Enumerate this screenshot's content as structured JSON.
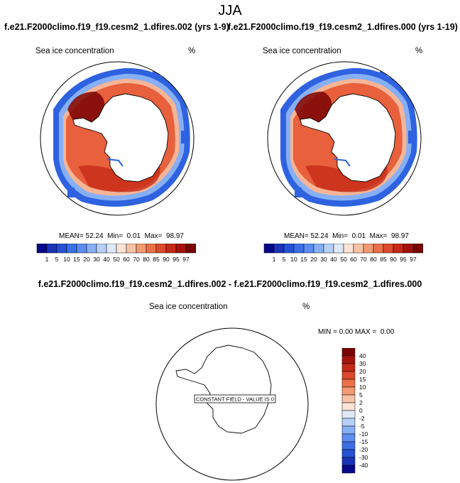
{
  "season": "JJA",
  "panels": [
    {
      "title": "f.e21.F2000climo.f19_f19.cesm2_1.dfires.002 (yrs 1-9)",
      "label_left": "Sea ice concentration",
      "label_right": "%",
      "stats": {
        "mean_label": "MEAN=",
        "mean": "52.24",
        "min_label": "Min=",
        "min": "0.01",
        "max_label": "Max=",
        "max": "98.97"
      }
    },
    {
      "title": "f.e21.F2000climo.f19_f19.cesm2_1.dfires.000 (yrs 1-19)",
      "label_left": "Sea ice concentration",
      "label_right": "%",
      "stats": {
        "mean_label": "MEAN=",
        "mean": "52.24",
        "min_label": "Min=",
        "min": "0.01",
        "max_label": "Max=",
        "max": "98.97"
      }
    }
  ],
  "colorbar": {
    "labels": [
      "1",
      "5",
      "10",
      "15",
      "20",
      "30",
      "40",
      "50",
      "60",
      "70",
      "80",
      "85",
      "90",
      "95",
      "97"
    ],
    "colors": [
      "#08088a",
      "#1a33b8",
      "#2452d6",
      "#3a6fe6",
      "#5c8ef2",
      "#86aff5",
      "#b5cff7",
      "#dde9f7",
      "#fbe4d6",
      "#f7c3a6",
      "#f29a72",
      "#eb7049",
      "#dd4a2c",
      "#c62a17",
      "#a5140c",
      "#7a0404"
    ]
  },
  "difference": {
    "title": "f.e21.F2000climo.f19_f19.cesm2_1.dfires.002 - f.e21.F2000climo.f19_f19.cesm2_1.dfires.000",
    "label_left": "Sea ice concentration",
    "label_right": "%",
    "stats": {
      "min_label": "MIN =",
      "min": "0.00",
      "max_label": "MAX =",
      "max": "0.00"
    },
    "annotation": "CONSTANT FIELD - VALUE IS 0",
    "colorbar": {
      "labels": [
        "40",
        "30",
        "20",
        "15",
        "10",
        "5",
        "2",
        "0",
        "-2",
        "-5",
        "-10",
        "-15",
        "-20",
        "-30",
        "-40"
      ],
      "colors": [
        "#7a0404",
        "#a5140c",
        "#c62a17",
        "#dd4a2c",
        "#eb7049",
        "#f29a72",
        "#f7c3a6",
        "#fbe4d6",
        "#dde9f7",
        "#b5cff7",
        "#86aff5",
        "#5c8ef2",
        "#3a6fe6",
        "#2452d6",
        "#1a33b8",
        "#08088a"
      ]
    }
  },
  "colors": {
    "coastline": "#000000",
    "ice_high": "#b41e10",
    "ice_mid": "#e8603c",
    "ice_low": "#f6b596",
    "edge_blue": "#2e62e0"
  }
}
